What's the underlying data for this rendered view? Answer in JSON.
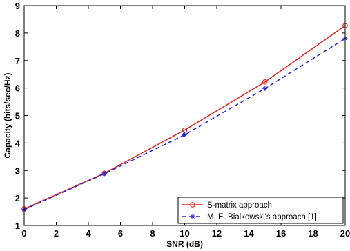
{
  "chart_data": {
    "type": "line",
    "xlabel": "SNR (dB)",
    "ylabel": "Capacity (bits/sec/Hz)",
    "xlim": [
      0,
      20
    ],
    "ylim": [
      1,
      9
    ],
    "xticks": [
      0,
      2,
      4,
      6,
      8,
      10,
      12,
      14,
      16,
      18,
      20
    ],
    "yticks": [
      1,
      2,
      3,
      4,
      5,
      6,
      7,
      8,
      9
    ],
    "grid": false,
    "legend_position": "bottom-right",
    "x": [
      0,
      5,
      10,
      15,
      20
    ],
    "series": [
      {
        "name": "S-matrix approach",
        "values": [
          1.6,
          2.9,
          4.47,
          6.22,
          8.27
        ],
        "color": "#e02020",
        "line": "solid",
        "marker": "circle"
      },
      {
        "name": "M. E. Bialkowski's approach  [1]",
        "values": [
          1.58,
          2.88,
          4.3,
          5.98,
          7.8
        ],
        "color": "#2222dd",
        "line": "dashed",
        "marker": "asterisk"
      }
    ]
  }
}
